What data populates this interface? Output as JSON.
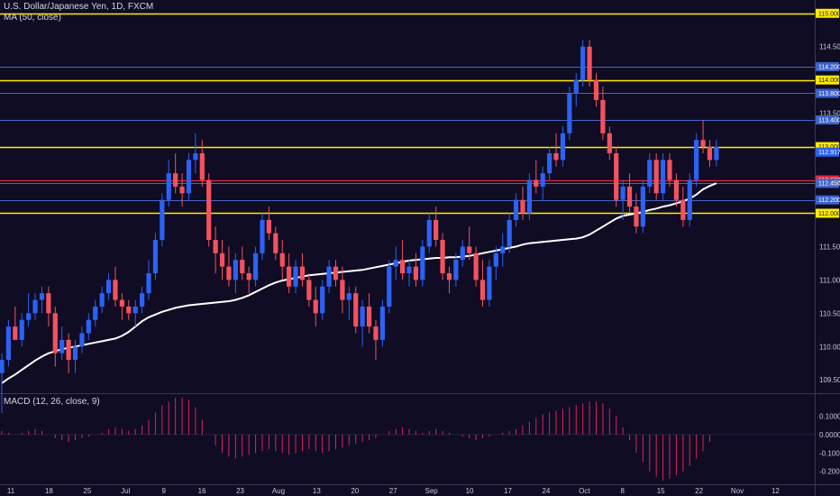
{
  "header": {
    "title": "U.S. Dollar/Japanese Yen, 1D, FXCM",
    "ma_label": "MA (50, close)",
    "macd_label": "MACD (12, 26, close, 9)"
  },
  "colors": {
    "background": "#0f0c24",
    "up": "#2c62f5",
    "down": "#f5525e",
    "ma": "#ffffff",
    "yellow": "#ffea00",
    "blue_line": "#4566c4",
    "red_line": "#e8283c",
    "macd_bar": "#d8245a"
  },
  "chart_data": [
    {
      "type": "candlestick",
      "name": "price",
      "ylim": [
        109.3,
        115.2
      ],
      "y_ticks": [
        "109.500",
        "110.000",
        "110.500",
        "111.000",
        "111.500",
        "112.000",
        "112.500",
        "113.000",
        "113.500",
        "114.000",
        "114.500",
        "115.000"
      ],
      "x_ticks": [
        "11",
        "18",
        "25",
        "Jul",
        "9",
        "16",
        "23",
        "Aug",
        "13",
        "20",
        "27",
        "Sep",
        "10",
        "17",
        "24",
        "Oct",
        "8",
        "15",
        "22",
        "Nov",
        "12"
      ],
      "horizontal_levels": [
        {
          "value": 115.0,
          "label": "115.000",
          "style": "yellow"
        },
        {
          "value": 114.2,
          "label": "114.200",
          "style": "blue"
        },
        {
          "value": 114.0,
          "label": "114.000",
          "style": "yellow"
        },
        {
          "value": 113.8,
          "label": "113.800",
          "style": "blue"
        },
        {
          "value": 113.4,
          "label": "113.400",
          "style": "blue"
        },
        {
          "value": 113.0,
          "label": "113.000",
          "style": "yellow"
        },
        {
          "value": 112.5,
          "label": "112.500",
          "style": "red"
        },
        {
          "value": 112.45,
          "label": "112.450",
          "style": "blue"
        },
        {
          "value": 112.2,
          "label": "112.200",
          "style": "blue"
        },
        {
          "value": 112.0,
          "label": "112.000",
          "style": "yellow"
        }
      ],
      "last_price": {
        "value": 112.917,
        "label": "112.917"
      },
      "ma_last": {
        "value": 112.45,
        "label": "112.450"
      },
      "candles": [
        [
          109.6,
          109.9,
          109.0,
          109.8
        ],
        [
          109.8,
          110.4,
          109.7,
          110.3
        ],
        [
          110.3,
          110.6,
          110.1,
          110.1
        ],
        [
          110.1,
          110.5,
          110.0,
          110.4
        ],
        [
          110.4,
          110.8,
          110.3,
          110.5
        ],
        [
          110.5,
          110.8,
          110.4,
          110.7
        ],
        [
          110.7,
          110.9,
          110.5,
          110.8
        ],
        [
          110.8,
          110.9,
          110.3,
          110.5
        ],
        [
          110.5,
          110.6,
          109.7,
          109.9
        ],
        [
          109.9,
          110.3,
          109.8,
          110.1
        ],
        [
          110.1,
          110.2,
          109.6,
          109.8
        ],
        [
          109.8,
          110.1,
          109.6,
          110.0
        ],
        [
          110.0,
          110.3,
          109.9,
          110.2
        ],
        [
          110.2,
          110.5,
          110.1,
          110.4
        ],
        [
          110.4,
          110.7,
          110.3,
          110.6
        ],
        [
          110.6,
          110.9,
          110.5,
          110.8
        ],
        [
          110.8,
          111.1,
          110.7,
          111.0
        ],
        [
          111.0,
          111.2,
          110.6,
          110.7
        ],
        [
          110.7,
          110.8,
          110.4,
          110.6
        ],
        [
          110.6,
          110.7,
          110.4,
          110.5
        ],
        [
          110.5,
          110.7,
          110.3,
          110.6
        ],
        [
          110.6,
          110.9,
          110.5,
          110.8
        ],
        [
          110.8,
          111.3,
          110.7,
          111.1
        ],
        [
          111.1,
          111.7,
          111.0,
          111.6
        ],
        [
          111.6,
          112.3,
          111.5,
          112.2
        ],
        [
          112.2,
          112.8,
          112.1,
          112.6
        ],
        [
          112.6,
          112.9,
          112.3,
          112.4
        ],
        [
          112.4,
          112.6,
          112.1,
          112.3
        ],
        [
          112.3,
          112.9,
          112.2,
          112.8
        ],
        [
          112.8,
          113.2,
          112.6,
          112.9
        ],
        [
          112.9,
          113.1,
          112.4,
          112.5
        ],
        [
          112.5,
          112.6,
          111.5,
          111.6
        ],
        [
          111.6,
          111.8,
          111.1,
          111.4
        ],
        [
          111.4,
          111.6,
          111.0,
          111.2
        ],
        [
          111.2,
          111.5,
          110.9,
          111.0
        ],
        [
          111.0,
          111.4,
          110.8,
          111.3
        ],
        [
          111.3,
          111.5,
          111.0,
          111.1
        ],
        [
          111.1,
          111.2,
          110.8,
          111.0
        ],
        [
          111.0,
          111.5,
          110.9,
          111.4
        ],
        [
          111.4,
          112.0,
          111.3,
          111.9
        ],
        [
          111.9,
          112.1,
          111.6,
          111.7
        ],
        [
          111.7,
          111.8,
          111.3,
          111.4
        ],
        [
          111.4,
          111.6,
          111.0,
          111.2
        ],
        [
          111.2,
          111.4,
          110.8,
          110.9
        ],
        [
          110.9,
          111.3,
          110.8,
          111.2
        ],
        [
          111.2,
          111.4,
          110.9,
          111.0
        ],
        [
          111.0,
          111.1,
          110.6,
          110.7
        ],
        [
          110.7,
          110.9,
          110.3,
          110.5
        ],
        [
          110.5,
          111.0,
          110.4,
          110.9
        ],
        [
          110.9,
          111.3,
          110.8,
          111.2
        ],
        [
          111.2,
          111.3,
          110.9,
          111.0
        ],
        [
          111.0,
          111.2,
          110.5,
          110.7
        ],
        [
          110.7,
          110.9,
          110.4,
          110.8
        ],
        [
          110.8,
          110.9,
          110.2,
          110.3
        ],
        [
          110.3,
          110.7,
          110.0,
          110.6
        ],
        [
          110.6,
          110.8,
          110.2,
          110.3
        ],
        [
          110.3,
          110.4,
          109.8,
          110.1
        ],
        [
          110.1,
          110.7,
          110.0,
          110.6
        ],
        [
          110.6,
          111.3,
          110.5,
          111.2
        ],
        [
          111.2,
          111.5,
          111.0,
          111.3
        ],
        [
          111.3,
          111.6,
          111.0,
          111.1
        ],
        [
          111.1,
          111.3,
          110.9,
          111.2
        ],
        [
          111.2,
          111.4,
          110.9,
          111.0
        ],
        [
          111.0,
          111.6,
          110.9,
          111.5
        ],
        [
          111.5,
          112.0,
          111.4,
          111.9
        ],
        [
          111.9,
          112.1,
          111.5,
          111.6
        ],
        [
          111.6,
          111.7,
          111.0,
          111.1
        ],
        [
          111.1,
          111.2,
          110.8,
          111.0
        ],
        [
          111.0,
          111.4,
          110.9,
          111.3
        ],
        [
          111.3,
          111.6,
          111.2,
          111.5
        ],
        [
          111.5,
          111.8,
          111.3,
          111.4
        ],
        [
          111.4,
          111.5,
          110.9,
          111.0
        ],
        [
          111.0,
          111.3,
          110.6,
          110.7
        ],
        [
          110.7,
          111.3,
          110.6,
          111.2
        ],
        [
          111.2,
          111.5,
          111.0,
          111.4
        ],
        [
          111.4,
          111.7,
          111.2,
          111.5
        ],
        [
          111.5,
          112.0,
          111.4,
          111.9
        ],
        [
          111.9,
          112.3,
          111.8,
          112.2
        ],
        [
          112.2,
          112.4,
          111.9,
          112.0
        ],
        [
          112.0,
          112.6,
          111.9,
          112.5
        ],
        [
          112.5,
          112.8,
          112.3,
          112.4
        ],
        [
          112.4,
          112.7,
          112.2,
          112.6
        ],
        [
          112.6,
          113.0,
          112.5,
          112.9
        ],
        [
          112.9,
          113.2,
          112.7,
          112.8
        ],
        [
          112.8,
          113.3,
          112.7,
          113.2
        ],
        [
          113.2,
          113.9,
          113.1,
          113.8
        ],
        [
          113.8,
          114.1,
          113.6,
          114.0
        ],
        [
          114.0,
          114.6,
          113.9,
          114.5
        ],
        [
          114.5,
          114.6,
          113.9,
          114.0
        ],
        [
          114.0,
          114.1,
          113.6,
          113.7
        ],
        [
          113.7,
          113.9,
          113.1,
          113.2
        ],
        [
          113.2,
          113.3,
          112.8,
          112.9
        ],
        [
          112.9,
          113.0,
          112.1,
          112.2
        ],
        [
          112.2,
          112.5,
          111.9,
          112.4
        ],
        [
          112.4,
          112.6,
          112.0,
          112.1
        ],
        [
          112.1,
          112.3,
          111.7,
          111.8
        ],
        [
          111.8,
          112.5,
          111.7,
          112.4
        ],
        [
          112.4,
          112.9,
          112.3,
          112.8
        ],
        [
          112.8,
          112.9,
          112.2,
          112.3
        ],
        [
          112.3,
          112.9,
          112.2,
          112.8
        ],
        [
          112.8,
          112.9,
          112.4,
          112.5
        ],
        [
          112.5,
          112.6,
          112.1,
          112.2
        ],
        [
          112.2,
          112.4,
          111.8,
          111.9
        ],
        [
          111.9,
          112.6,
          111.8,
          112.5
        ],
        [
          112.5,
          113.2,
          112.4,
          113.1
        ],
        [
          113.1,
          113.4,
          112.9,
          113.0
        ],
        [
          113.0,
          113.1,
          112.7,
          112.8
        ],
        [
          112.8,
          113.1,
          112.7,
          113.0
        ]
      ],
      "ma_values": [
        109.45,
        109.52,
        109.58,
        109.65,
        109.72,
        109.79,
        109.85,
        109.9,
        109.93,
        109.96,
        109.98,
        110.0,
        110.02,
        110.04,
        110.06,
        110.08,
        110.1,
        110.12,
        110.16,
        110.22,
        110.3,
        110.38,
        110.44,
        110.48,
        110.52,
        110.55,
        110.58,
        110.6,
        110.62,
        110.63,
        110.64,
        110.65,
        110.66,
        110.67,
        110.68,
        110.7,
        110.73,
        110.77,
        110.82,
        110.87,
        110.92,
        110.96,
        110.99,
        111.01,
        111.03,
        111.05,
        111.07,
        111.08,
        111.09,
        111.1,
        111.11,
        111.12,
        111.13,
        111.14,
        111.15,
        111.17,
        111.19,
        111.21,
        111.23,
        111.25,
        111.27,
        111.29,
        111.3,
        111.31,
        111.32,
        111.33,
        111.33,
        111.34,
        111.34,
        111.35,
        111.36,
        111.38,
        111.4,
        111.42,
        111.44,
        111.46,
        111.48,
        111.5,
        111.53,
        111.55,
        111.56,
        111.57,
        111.58,
        111.59,
        111.6,
        111.61,
        111.62,
        111.64,
        111.68,
        111.74,
        111.8,
        111.86,
        111.92,
        111.96,
        111.98,
        112.0,
        112.02,
        112.05,
        112.07,
        112.1,
        112.12,
        112.15,
        112.18,
        112.22,
        112.28,
        112.36,
        112.41,
        112.45
      ]
    },
    {
      "type": "histogram",
      "name": "macd",
      "ylim": [
        -0.27,
        0.22
      ],
      "y_ticks": [
        "0.1000",
        "0.0000",
        "-0.1000",
        "-0.2000"
      ],
      "values": [
        0.02,
        0.01,
        0.0,
        0.01,
        0.02,
        0.03,
        0.02,
        0.0,
        -0.02,
        -0.03,
        -0.04,
        -0.03,
        -0.02,
        -0.01,
        0.0,
        0.01,
        0.03,
        0.04,
        0.03,
        0.02,
        0.03,
        0.05,
        0.08,
        0.12,
        0.16,
        0.18,
        0.2,
        0.2,
        0.19,
        0.15,
        0.08,
        0.0,
        -0.06,
        -0.1,
        -0.12,
        -0.13,
        -0.12,
        -0.11,
        -0.1,
        -0.09,
        -0.08,
        -0.09,
        -0.1,
        -0.11,
        -0.1,
        -0.09,
        -0.08,
        -0.09,
        -0.1,
        -0.09,
        -0.08,
        -0.07,
        -0.06,
        -0.05,
        -0.04,
        -0.03,
        -0.02,
        0.0,
        0.02,
        0.03,
        0.04,
        0.03,
        0.02,
        0.01,
        0.02,
        0.03,
        0.02,
        0.01,
        0.0,
        -0.01,
        -0.02,
        -0.03,
        -0.02,
        -0.01,
        0.0,
        0.01,
        0.02,
        0.03,
        0.05,
        0.07,
        0.09,
        0.11,
        0.12,
        0.13,
        0.14,
        0.15,
        0.16,
        0.17,
        0.18,
        0.18,
        0.17,
        0.14,
        0.1,
        0.04,
        -0.03,
        -0.1,
        -0.15,
        -0.2,
        -0.23,
        -0.25,
        -0.24,
        -0.22,
        -0.2,
        -0.17,
        -0.13,
        -0.09,
        -0.04,
        0.0
      ]
    }
  ]
}
